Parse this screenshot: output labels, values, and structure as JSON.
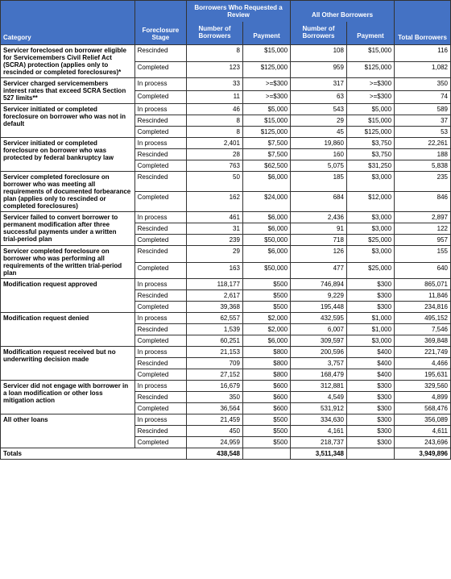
{
  "headers": {
    "category": "Category",
    "foreclosure_stage": "Foreclosure Stage",
    "group_requested": "Borrowers Who Requested a Review",
    "group_other": "All Other Borrowers",
    "num_borrowers": "Number of Borrowers",
    "payment": "Payment",
    "total_borrowers": "Total Borrowers"
  },
  "categories": [
    {
      "label": "Servicer foreclosed on borrower eligible for Servicemembers Civil Relief Act (SCRA) protection (applies only to rescinded or completed foreclosures)*",
      "rows": [
        {
          "stage": "Rescinded",
          "rb": "8",
          "rp": "$15,000",
          "ob": "108",
          "op": "$15,000",
          "tot": "116"
        },
        {
          "stage": "Completed",
          "rb": "123",
          "rp": "$125,000",
          "ob": "959",
          "op": "$125,000",
          "tot": "1,082"
        }
      ]
    },
    {
      "label": "Servicer charged servicemembers interest rates that exceed SCRA Section 527 limits**",
      "rows": [
        {
          "stage": "In process",
          "rb": "33",
          "rp": ">=$300",
          "ob": "317",
          "op": ">=$300",
          "tot": "350"
        },
        {
          "stage": "Completed",
          "rb": "11",
          "rp": ">=$300",
          "ob": "63",
          "op": ">=$300",
          "tot": "74"
        }
      ]
    },
    {
      "label": "Servicer initiated  or completed foreclosure on borrower who was not in default",
      "rows": [
        {
          "stage": "In process",
          "rb": "46",
          "rp": "$5,000",
          "ob": "543",
          "op": "$5,000",
          "tot": "589"
        },
        {
          "stage": "Rescinded",
          "rb": "8",
          "rp": "$15,000",
          "ob": "29",
          "op": "$15,000",
          "tot": "37"
        },
        {
          "stage": "Completed",
          "rb": "8",
          "rp": "$125,000",
          "ob": "45",
          "op": "$125,000",
          "tot": "53"
        }
      ]
    },
    {
      "label": "Servicer initiated or completed foreclosure on borrower who was protected by federal bankruptcy law",
      "rows": [
        {
          "stage": "In process",
          "rb": "2,401",
          "rp": "$7,500",
          "ob": "19,860",
          "op": "$3,750",
          "tot": "22,261"
        },
        {
          "stage": "Rescinded",
          "rb": "28",
          "rp": "$7,500",
          "ob": "160",
          "op": "$3,750",
          "tot": "188"
        },
        {
          "stage": "Completed",
          "rb": "763",
          "rp": "$62,500",
          "ob": "5,075",
          "op": "$31,250",
          "tot": "5,838"
        }
      ]
    },
    {
      "label": "Servicer completed foreclosure on borrower who was meeting all requirements of documented forbearance plan (applies only to rescinded or completed foreclosures)",
      "rows": [
        {
          "stage": "Rescinded",
          "rb": "50",
          "rp": "$6,000",
          "ob": "185",
          "op": "$3,000",
          "tot": "235"
        },
        {
          "stage": "Completed",
          "rb": "162",
          "rp": "$24,000",
          "ob": "684",
          "op": "$12,000",
          "tot": "846"
        }
      ]
    },
    {
      "label": "Servicer failed to convert borrower to permanent modification after three successful payments under a written trial-period plan",
      "rows": [
        {
          "stage": "In process",
          "rb": "461",
          "rp": "$6,000",
          "ob": "2,436",
          "op": "$3,000",
          "tot": "2,897"
        },
        {
          "stage": "Rescinded",
          "rb": "31",
          "rp": "$6,000",
          "ob": "91",
          "op": "$3,000",
          "tot": "122"
        },
        {
          "stage": "Completed",
          "rb": "239",
          "rp": "$50,000",
          "ob": "718",
          "op": "$25,000",
          "tot": "957"
        }
      ]
    },
    {
      "label": "Servicer completed foreclosure on borrower who was performing all requirements of the written trial-period plan",
      "rows": [
        {
          "stage": "Rescinded",
          "rb": "29",
          "rp": "$6,000",
          "ob": "126",
          "op": "$3,000",
          "tot": "155"
        },
        {
          "stage": "Completed",
          "rb": "163",
          "rp": "$50,000",
          "ob": "477",
          "op": "$25,000",
          "tot": "640"
        }
      ]
    },
    {
      "label": "Modification request approved",
      "rows": [
        {
          "stage": "In process",
          "rb": "118,177",
          "rp": "$500",
          "ob": "746,894",
          "op": "$300",
          "tot": "865,071"
        },
        {
          "stage": "Rescinded",
          "rb": "2,617",
          "rp": "$500",
          "ob": "9,229",
          "op": "$300",
          "tot": "11,846"
        },
        {
          "stage": "Completed",
          "rb": "39,368",
          "rp": "$500",
          "ob": "195,448",
          "op": "$300",
          "tot": "234,816"
        }
      ]
    },
    {
      "label": "Modification request denied",
      "rows": [
        {
          "stage": "In process",
          "rb": "62,557",
          "rp": "$2,000",
          "ob": "432,595",
          "op": "$1,000",
          "tot": "495,152"
        },
        {
          "stage": "Rescinded",
          "rb": "1,539",
          "rp": "$2,000",
          "ob": "6,007",
          "op": "$1,000",
          "tot": "7,546"
        },
        {
          "stage": "Completed",
          "rb": "60,251",
          "rp": "$6,000",
          "ob": "309,597",
          "op": "$3,000",
          "tot": "369,848"
        }
      ]
    },
    {
      "label": "Modification request received but no underwriting decision made",
      "rows": [
        {
          "stage": "In process",
          "rb": "21,153",
          "rp": "$800",
          "ob": "200,596",
          "op": "$400",
          "tot": "221,749"
        },
        {
          "stage": "Rescinded",
          "rb": "709",
          "rp": "$800",
          "ob": "3,757",
          "op": "$400",
          "tot": "4,466"
        },
        {
          "stage": "Completed",
          "rb": "27,152",
          "rp": "$800",
          "ob": "168,479",
          "op": "$400",
          "tot": "195,631"
        }
      ]
    },
    {
      "label": "Servicer did not engage with borrower in a loan modification or other loss mitigation action",
      "rows": [
        {
          "stage": "In process",
          "rb": "16,679",
          "rp": "$600",
          "ob": "312,881",
          "op": "$300",
          "tot": "329,560"
        },
        {
          "stage": "Rescinded",
          "rb": "350",
          "rp": "$600",
          "ob": "4,549",
          "op": "$300",
          "tot": "4,899"
        },
        {
          "stage": "Completed",
          "rb": "36,564",
          "rp": "$600",
          "ob": "531,912",
          "op": "$300",
          "tot": "568,476"
        }
      ]
    },
    {
      "label": "All other loans",
      "rows": [
        {
          "stage": "In process",
          "rb": "21,459",
          "rp": "$500",
          "ob": "334,630",
          "op": "$300",
          "tot": "356,089"
        },
        {
          "stage": "Rescinded",
          "rb": "450",
          "rp": "$500",
          "ob": "4,161",
          "op": "$300",
          "tot": "4,611"
        },
        {
          "stage": "Completed",
          "rb": "24,959",
          "rp": "$500",
          "ob": "218,737",
          "op": "$300",
          "tot": "243,696"
        }
      ]
    }
  ],
  "totals": {
    "label": "Totals",
    "rb": "438,548",
    "rp": "",
    "ob": "3,511,348",
    "op": "",
    "tot": "3,949,896"
  },
  "colors": {
    "header_bg": "#4472c4",
    "header_fg": "#ffffff",
    "border": "#333333"
  }
}
